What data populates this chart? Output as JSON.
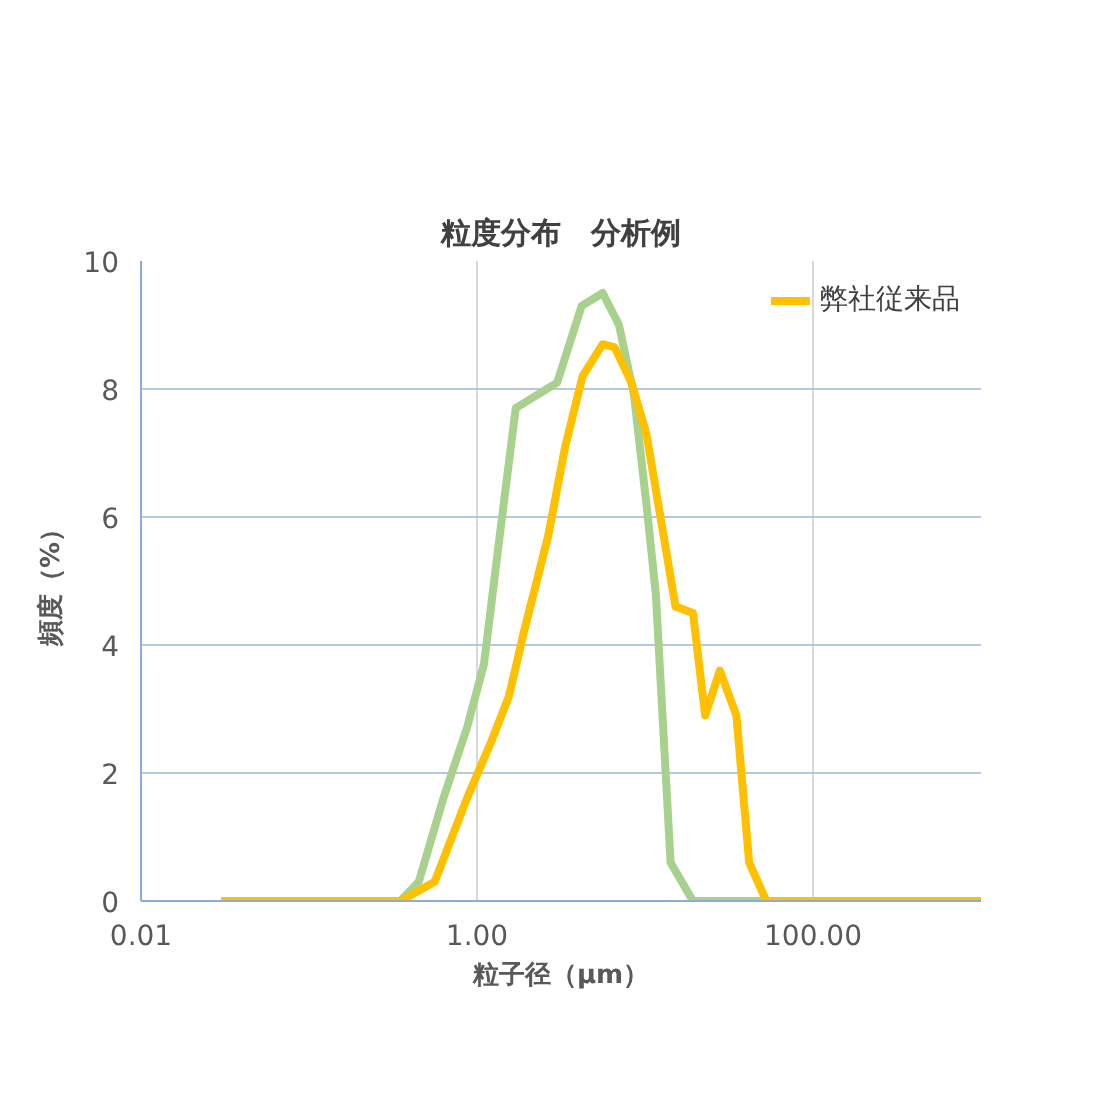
{
  "chart_data": {
    "type": "line",
    "title": "粒度分布　分析例",
    "xlabel": "粒子径（μm）",
    "ylabel": "頻度（%）",
    "log": "x",
    "grid": true,
    "legend": "top right",
    "xlim": [
      0.01,
      1000
    ],
    "xticks": [
      {
        "value": 0.01,
        "label": "0.01"
      },
      {
        "value": 1,
        "label": "1.00"
      },
      {
        "value": 100,
        "label": "100.00"
      }
    ],
    "ylim": [
      0,
      10
    ],
    "yticks": [
      0,
      2,
      4,
      6,
      8,
      10
    ],
    "series": [
      {
        "color": "#a9d18e",
        "x": [
          0.03,
          0.35,
          0.45,
          0.63,
          0.87,
          1.1,
          1.35,
          1.7,
          3.0,
          4.2,
          5.6,
          7.0,
          8.6,
          10.2,
          11.6,
          14.2,
          19.3,
          55
        ],
        "values": [
          0,
          0,
          0.3,
          1.6,
          2.7,
          3.7,
          5.6,
          7.7,
          8.1,
          9.3,
          9.5,
          9.0,
          7.9,
          6.2,
          4.8,
          0.6,
          0,
          0
        ]
      },
      {
        "name": "弊社従来品",
        "color": "#ffc000",
        "x": [
          0.03,
          0.35,
          0.56,
          0.87,
          1.22,
          1.55,
          1.9,
          2.65,
          3.35,
          4.25,
          5.6,
          6.6,
          8.3,
          10.2,
          15.2,
          19.3,
          22.8,
          27.9,
          35,
          41.7,
          52.8,
          1000
        ],
        "values": [
          0,
          0,
          0.3,
          1.6,
          2.5,
          3.2,
          4.2,
          5.7,
          7.1,
          8.2,
          8.7,
          8.65,
          8.1,
          7.3,
          4.6,
          4.5,
          2.9,
          3.6,
          2.9,
          0.6,
          0,
          0
        ]
      }
    ]
  }
}
